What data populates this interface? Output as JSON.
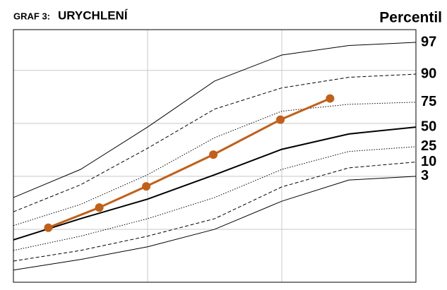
{
  "chart_data": {
    "type": "line",
    "title_label": "GRAF 3:",
    "title": "URYCHLENÍ",
    "legend_title": "Percentil",
    "xlim": [
      0,
      3
    ],
    "ylim": [
      0,
      4.77
    ],
    "xticks": [
      1,
      2
    ],
    "yticks": [
      1,
      2,
      3,
      4
    ],
    "grid": true,
    "x": [
      0,
      0.5,
      1,
      1.5,
      2,
      2.5,
      3
    ],
    "series": [
      {
        "name": "97",
        "color": "#000000",
        "line_style": "solid",
        "values": [
          1.6,
          2.13,
          2.93,
          3.8,
          4.29,
          4.47,
          4.53
        ]
      },
      {
        "name": "90",
        "color": "#000000",
        "line_style": "dashed",
        "values": [
          1.33,
          1.84,
          2.53,
          3.27,
          3.67,
          3.87,
          3.93
        ]
      },
      {
        "name": "75",
        "color": "#000000",
        "line_style": "dotted",
        "values": [
          1.07,
          1.47,
          2.03,
          2.73,
          3.23,
          3.36,
          3.4
        ]
      },
      {
        "name": "50",
        "color": "#000000",
        "line_style": "thick",
        "values": [
          0.8,
          1.2,
          1.57,
          2.03,
          2.51,
          2.8,
          2.93
        ]
      },
      {
        "name": "25",
        "color": "#000000",
        "line_style": "dotted",
        "values": [
          0.6,
          0.87,
          1.2,
          1.6,
          2.13,
          2.47,
          2.56
        ]
      },
      {
        "name": "10",
        "color": "#000000",
        "line_style": "dashed",
        "values": [
          0.4,
          0.6,
          0.87,
          1.2,
          1.8,
          2.16,
          2.27
        ]
      },
      {
        "name": "3",
        "color": "#000000",
        "line_style": "solid",
        "values": [
          0.23,
          0.43,
          0.67,
          1.0,
          1.53,
          1.93,
          2.0
        ]
      }
    ],
    "measured": {
      "color": "#c0601a",
      "x": [
        0.26,
        0.64,
        0.99,
        1.49,
        1.99,
        2.36
      ],
      "values": [
        1.03,
        1.41,
        1.81,
        2.41,
        3.07,
        3.47
      ]
    }
  }
}
